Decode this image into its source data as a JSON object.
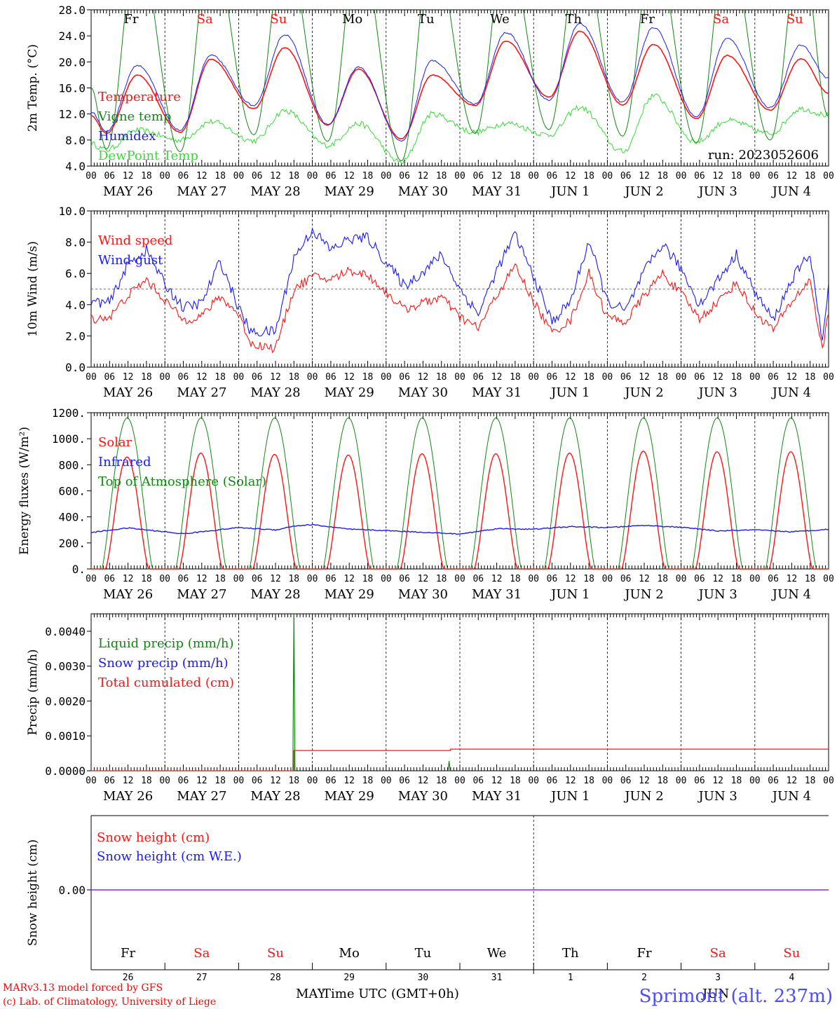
{
  "colors": {
    "red": "#ff1414",
    "green": "#118811",
    "lightgreen": "#33dd33",
    "blue": "#1a1aff",
    "purple": "#8a2be2",
    "weekday": "#000000",
    "weekend": "#ff1414"
  },
  "days": [
    {
      "name": "Fr",
      "weekend": false,
      "date": "MAY 26",
      "num": "26"
    },
    {
      "name": "Sa",
      "weekend": true,
      "date": "MAY 27",
      "num": "27"
    },
    {
      "name": "Su",
      "weekend": true,
      "date": "MAY 28",
      "num": "28"
    },
    {
      "name": "Mo",
      "weekend": false,
      "date": "MAY 29",
      "num": "29"
    },
    {
      "name": "Tu",
      "weekend": false,
      "date": "MAY 30",
      "num": "30"
    },
    {
      "name": "We",
      "weekend": false,
      "date": "MAY 31",
      "num": "31"
    },
    {
      "name": "Th",
      "weekend": false,
      "date": "JUN  1",
      "num": "1"
    },
    {
      "name": "Fr",
      "weekend": false,
      "date": "JUN  2",
      "num": "2"
    },
    {
      "name": "Sa",
      "weekend": true,
      "date": "JUN  3",
      "num": "3"
    },
    {
      "name": "Su",
      "weekend": true,
      "date": "JUN  4",
      "num": "4"
    }
  ],
  "hour_ticks": [
    "00",
    "06",
    "12",
    "18"
  ],
  "hour_ticks_end": "00",
  "footer": {
    "line1": "MARv3.13 model forced by GFS",
    "line2": "(c) Lab. of Climatology, University of Liege",
    "xlabel": "Time UTC (GMT+0h)",
    "month_left": "MAY",
    "month_right": "JUN",
    "site": "Sprimont (alt. 237m)"
  },
  "chart_data": [
    {
      "type": "line",
      "id": "temp",
      "ylabel": "2m Temp. (°C)",
      "ylim": [
        4.0,
        28.0
      ],
      "yticks": [
        "4.0",
        "8.0",
        "12.0",
        "16.0",
        "20.0",
        "24.0",
        "28.0"
      ],
      "annotation": "run: 2023052606",
      "x": "hours since MAY 26 00 UTC, 0–240",
      "series": [
        {
          "name": "Temperature",
          "color": "red",
          "mins": [
            9.0,
            9.2,
            12.8,
            10.3,
            8.2,
            13.3,
            14.6,
            13.4,
            11.3,
            12.6
          ],
          "maxs": [
            18.0,
            20.4,
            22.2,
            18.9,
            18.0,
            23.2,
            24.7,
            22.7,
            21.0,
            20.5
          ],
          "end": 15.2
        },
        {
          "name": "Vigne temp",
          "color": "green",
          "mins": [
            6.6,
            6.2,
            8.8,
            7.8,
            4.8,
            9.0,
            9.6,
            8.6,
            7.6,
            8.0
          ],
          "maxs": [
            28.0,
            28.0,
            28.0,
            28.0,
            28.0,
            28.0,
            28.0,
            28.0,
            28.0,
            28.0
          ],
          "end": 11.6
        },
        {
          "name": "Humidex",
          "color": "blue",
          "mins": [
            9.3,
            9.5,
            13.3,
            10.4,
            7.8,
            13.5,
            14.1,
            13.8,
            11.6,
            13.0
          ],
          "maxs": [
            19.5,
            21.0,
            24.2,
            19.2,
            20.2,
            24.5,
            25.9,
            25.3,
            23.6,
            22.6
          ],
          "end": 17.5
        },
        {
          "name": "DewPoint Temp",
          "color": "lightgreen",
          "mins": [
            6.5,
            8.0,
            7.9,
            7.2,
            4.6,
            9.2,
            8.8,
            6.2,
            7.7,
            9.0
          ],
          "maxs": [
            9.5,
            10.8,
            12.5,
            10.5,
            12.0,
            10.6,
            13.0,
            14.8,
            11.0,
            12.8
          ],
          "end": 11.8
        }
      ]
    },
    {
      "type": "line",
      "id": "wind",
      "ylabel": "10m Wind (m/s)",
      "ylim": [
        0.0,
        10.0
      ],
      "yticks": [
        "0.0",
        "2.0",
        "4.0",
        "6.0",
        "8.0",
        "10.0"
      ],
      "threshold": 5.0,
      "series": [
        {
          "name": "Wind speed",
          "color": "red",
          "points": [
            [
              0,
              3.1
            ],
            [
              6,
              3.2
            ],
            [
              12,
              4.6
            ],
            [
              18,
              5.6
            ],
            [
              24,
              4.3
            ],
            [
              30,
              3.0
            ],
            [
              36,
              3.3
            ],
            [
              42,
              4.5
            ],
            [
              48,
              3.4
            ],
            [
              52,
              1.5
            ],
            [
              60,
              1.2
            ],
            [
              66,
              5.0
            ],
            [
              72,
              5.8
            ],
            [
              78,
              5.6
            ],
            [
              84,
              6.2
            ],
            [
              90,
              5.9
            ],
            [
              96,
              4.8
            ],
            [
              102,
              3.7
            ],
            [
              108,
              4.1
            ],
            [
              114,
              4.5
            ],
            [
              120,
              3.2
            ],
            [
              126,
              2.5
            ],
            [
              132,
              4.6
            ],
            [
              138,
              6.5
            ],
            [
              144,
              4.2
            ],
            [
              150,
              2.2
            ],
            [
              156,
              3.0
            ],
            [
              162,
              6.0
            ],
            [
              168,
              3.2
            ],
            [
              174,
              2.9
            ],
            [
              180,
              4.6
            ],
            [
              186,
              6.0
            ],
            [
              192,
              4.7
            ],
            [
              198,
              3.1
            ],
            [
              204,
              4.2
            ],
            [
              210,
              5.4
            ],
            [
              216,
              3.5
            ],
            [
              222,
              2.4
            ],
            [
              228,
              4.2
            ],
            [
              234,
              5.6
            ],
            [
              238,
              1.0
            ],
            [
              240,
              3.6
            ]
          ]
        },
        {
          "name": "Wind gust",
          "color": "blue",
          "points": [
            [
              0,
              4.2
            ],
            [
              6,
              4.1
            ],
            [
              12,
              6.6
            ],
            [
              18,
              7.5
            ],
            [
              24,
              5.3
            ],
            [
              30,
              3.8
            ],
            [
              36,
              4.1
            ],
            [
              42,
              6.8
            ],
            [
              48,
              3.8
            ],
            [
              52,
              2.2
            ],
            [
              60,
              2.3
            ],
            [
              66,
              7.0
            ],
            [
              72,
              8.8
            ],
            [
              78,
              7.5
            ],
            [
              84,
              8.2
            ],
            [
              90,
              8.3
            ],
            [
              96,
              6.7
            ],
            [
              102,
              5.2
            ],
            [
              108,
              6.1
            ],
            [
              114,
              7.2
            ],
            [
              120,
              5.0
            ],
            [
              126,
              3.4
            ],
            [
              132,
              6.2
            ],
            [
              138,
              8.5
            ],
            [
              144,
              5.8
            ],
            [
              150,
              2.9
            ],
            [
              156,
              4.2
            ],
            [
              162,
              8.1
            ],
            [
              168,
              4.2
            ],
            [
              174,
              3.6
            ],
            [
              180,
              6.1
            ],
            [
              186,
              7.9
            ],
            [
              192,
              6.3
            ],
            [
              198,
              4.0
            ],
            [
              204,
              5.6
            ],
            [
              210,
              7.2
            ],
            [
              216,
              4.8
            ],
            [
              222,
              3.0
            ],
            [
              228,
              5.6
            ],
            [
              234,
              7.3
            ],
            [
              238,
              1.5
            ],
            [
              240,
              5.3
            ]
          ]
        }
      ]
    },
    {
      "type": "line",
      "id": "flux",
      "ylabel": "Energy fluxes (W/m²)",
      "ylim": [
        0,
        1200
      ],
      "yticks": [
        "0.",
        "200.",
        "400.",
        "600.",
        "800.",
        "1000.",
        "1200."
      ],
      "series": [
        {
          "name": "Solar",
          "color": "red",
          "peaks": [
            860,
            890,
            880,
            875,
            885,
            885,
            890,
            905,
            900,
            900
          ]
        },
        {
          "name": "Infrared",
          "color": "blue",
          "points": [
            [
              0,
              280
            ],
            [
              12,
              315
            ],
            [
              30,
              270
            ],
            [
              48,
              318
            ],
            [
              60,
              300
            ],
            [
              66,
              330
            ],
            [
              72,
              340
            ],
            [
              84,
              305
            ],
            [
              96,
              295
            ],
            [
              108,
              282
            ],
            [
              120,
              268
            ],
            [
              132,
              310
            ],
            [
              144,
              305
            ],
            [
              156,
              325
            ],
            [
              168,
              318
            ],
            [
              180,
              335
            ],
            [
              192,
              320
            ],
            [
              204,
              292
            ],
            [
              216,
              300
            ],
            [
              228,
              285
            ],
            [
              240,
              305
            ]
          ]
        },
        {
          "name": "Top of Atmosphere (Solar)",
          "color": "green",
          "peak": 1160
        }
      ]
    },
    {
      "type": "line",
      "id": "precip",
      "ylabel": "Precip (mm/h)",
      "ylim": [
        0,
        0.0045
      ],
      "yticks": [
        "0.0000",
        "0.0010",
        "0.0020",
        "0.0030",
        "0.0040"
      ],
      "series": [
        {
          "name": "Liquid precip (mm/h)",
          "color": "green",
          "spikes": [
            [
              66,
              0.0045
            ],
            [
              116.5,
              0.00028
            ]
          ]
        },
        {
          "name": "Snow precip (mm/h)",
          "color": "blue",
          "spikes": []
        },
        {
          "name": "Total cumulated (cm)",
          "color": "red",
          "steps": [
            [
              0,
              0
            ],
            [
              66,
              0.00058
            ],
            [
              117,
              0.00062
            ],
            [
              240,
              0.00062
            ]
          ]
        }
      ]
    },
    {
      "type": "line",
      "id": "snow",
      "ylabel": "Snow height (cm)",
      "ytick": "0.00",
      "series": [
        {
          "name": "Snow height (cm)",
          "color": "red"
        },
        {
          "name": "Snow height (cm W.E.)",
          "color": "blue"
        }
      ]
    }
  ]
}
